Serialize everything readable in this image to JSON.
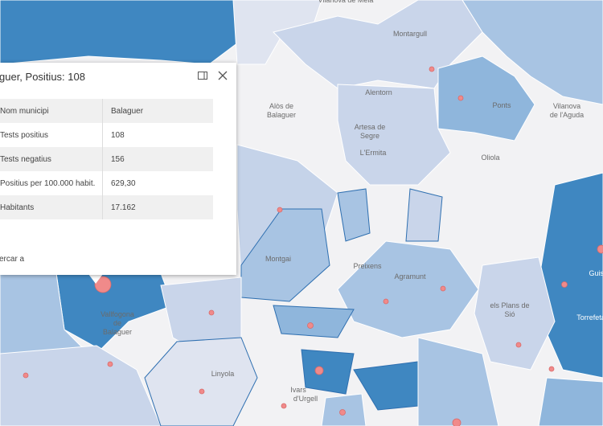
{
  "popup": {
    "title": "guer, Positius: 108",
    "rows": [
      [
        "Nom municipi",
        "Balaguer"
      ],
      [
        "Tests positius",
        "108"
      ],
      [
        "Tests negatius",
        "156"
      ],
      [
        "Positius per 100.000 habit.",
        "629,30"
      ],
      [
        "Habitants",
        "17.162"
      ]
    ],
    "footer": "ercar a"
  },
  "labels": [
    "Vilanova de Meià",
    "Montargull",
    "Alòs de",
    "Balaguer",
    "Alentorn",
    "Artesa de",
    "Segre",
    "L'Ermita",
    "Ponts",
    "Vilanova",
    "de l'Aguda",
    "Oliola",
    "Montgai",
    "Preixens",
    "Agramunt",
    "els Plans de",
    "Sió",
    "Vallfogona",
    "de",
    "Balaguer",
    "Linyola",
    "Ivars",
    "d'Urgell",
    "Guiss",
    "Torrefeta"
  ]
}
